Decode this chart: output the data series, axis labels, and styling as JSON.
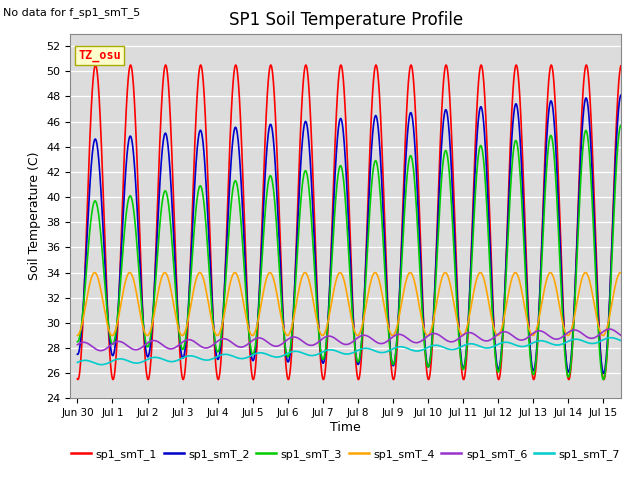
{
  "title": "SP1 Soil Temperature Profile",
  "note": "No data for f_sp1_smT_5",
  "ylabel": "Soil Temperature (C)",
  "xlabel": "Time",
  "tz_label": "TZ_osu",
  "ylim": [
    24,
    53
  ],
  "xlim": [
    -0.2,
    15.5
  ],
  "yticks": [
    24,
    26,
    28,
    30,
    32,
    34,
    36,
    38,
    40,
    42,
    44,
    46,
    48,
    50,
    52
  ],
  "xtick_positions": [
    0,
    1,
    2,
    3,
    4,
    5,
    6,
    7,
    8,
    9,
    10,
    11,
    12,
    13,
    14,
    15
  ],
  "xtick_labels": [
    "Jun 30",
    "Jul 1",
    "Jul 2",
    "Jul 3",
    "Jul 4",
    "Jul 5",
    "Jul 6",
    "Jul 7",
    "Jul 8",
    "Jul 9",
    "Jul 10",
    "Jul 11",
    "Jul 12",
    "Jul 13",
    "Jul 14",
    "Jul 15"
  ],
  "series": {
    "sp1_smT_1": {
      "color": "#FF0000",
      "lw": 1.2
    },
    "sp1_smT_2": {
      "color": "#0000CC",
      "lw": 1.2
    },
    "sp1_smT_3": {
      "color": "#00CC00",
      "lw": 1.2
    },
    "sp1_smT_4": {
      "color": "#FFA500",
      "lw": 1.2
    },
    "sp1_smT_6": {
      "color": "#9933CC",
      "lw": 1.2
    },
    "sp1_smT_7": {
      "color": "#00CCCC",
      "lw": 1.2
    }
  },
  "bg_color": "#DCDCDC",
  "legend_labels": [
    "sp1_smT_1",
    "sp1_smT_2",
    "sp1_smT_3",
    "sp1_smT_4",
    "sp1_smT_6",
    "sp1_smT_7"
  ],
  "legend_colors": [
    "#FF0000",
    "#0000CC",
    "#00CC00",
    "#FFA500",
    "#9933CC",
    "#00CCCC"
  ]
}
